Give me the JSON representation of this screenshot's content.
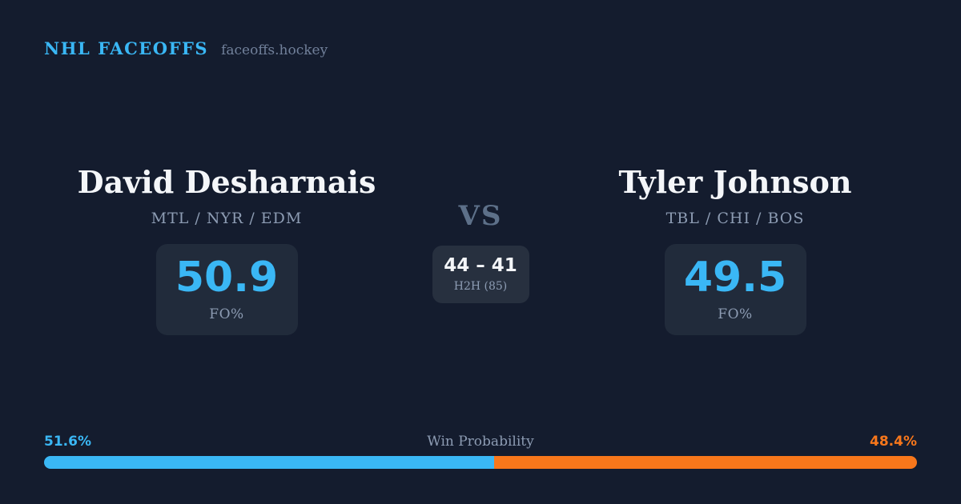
{
  "colors": {
    "background": "#141c2e",
    "card": "#212b3b",
    "card_alt": "#27303f",
    "accent_blue": "#3ab7f5",
    "accent_orange": "#f8771b",
    "text_primary": "#f4f6f9",
    "text_muted": "#8d9cb3",
    "text_faint": "#71809a",
    "vs": "#5d7089"
  },
  "header": {
    "brand": "NHL FACEOFFS",
    "site": "faceoffs.hockey"
  },
  "players": {
    "left": {
      "name": "David Desharnais",
      "teams": "MTL / NYR / EDM",
      "fo_pct": "50.9",
      "stat_label": "FO%"
    },
    "right": {
      "name": "Tyler Johnson",
      "teams": "TBL / CHI / BOS",
      "fo_pct": "49.5",
      "stat_label": "FO%"
    }
  },
  "matchup": {
    "vs_label": "VS",
    "h2h_score": "44 – 41",
    "h2h_label": "H2H (85)"
  },
  "win_probability": {
    "title": "Win Probability",
    "left_label": "51.6%",
    "right_label": "48.4%",
    "left_value": 51.6,
    "right_value": 48.4
  }
}
